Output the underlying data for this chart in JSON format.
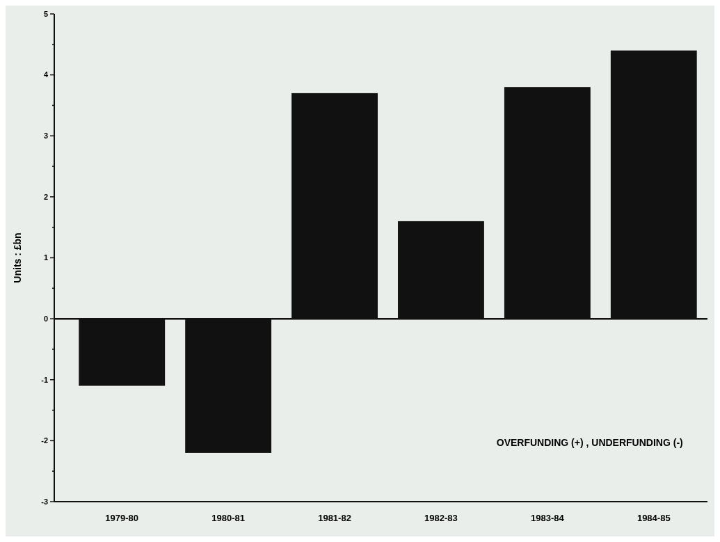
{
  "chart_data": {
    "type": "bar",
    "ylabel": "Units : £bn",
    "categories": [
      "1979-80",
      "1980-81",
      "1981-82",
      "1982-83",
      "1983-84",
      "1984-85"
    ],
    "values": [
      -1.1,
      -2.2,
      3.7,
      1.6,
      3.8,
      4.4
    ],
    "color": "#111111",
    "ylim": [
      -3,
      5
    ],
    "yticks": [
      -3,
      {
        "value": -2.5,
        "label": null
      },
      -2,
      {
        "value": -1.5,
        "label": null
      },
      -1,
      {
        "value": -0.5,
        "label": null
      },
      0,
      {
        "value": 0.5,
        "label": null
      },
      1,
      {
        "value": 1.5,
        "label": null
      },
      2,
      {
        "value": 2.5,
        "label": null
      },
      3,
      {
        "value": 3.5,
        "label": null
      },
      4,
      {
        "value": 4.5,
        "label": null
      },
      5
    ],
    "annotations": [
      "OVERFUNDING (+) , UNDERFUNDING (-)"
    ],
    "tick_labels": "xy"
  }
}
